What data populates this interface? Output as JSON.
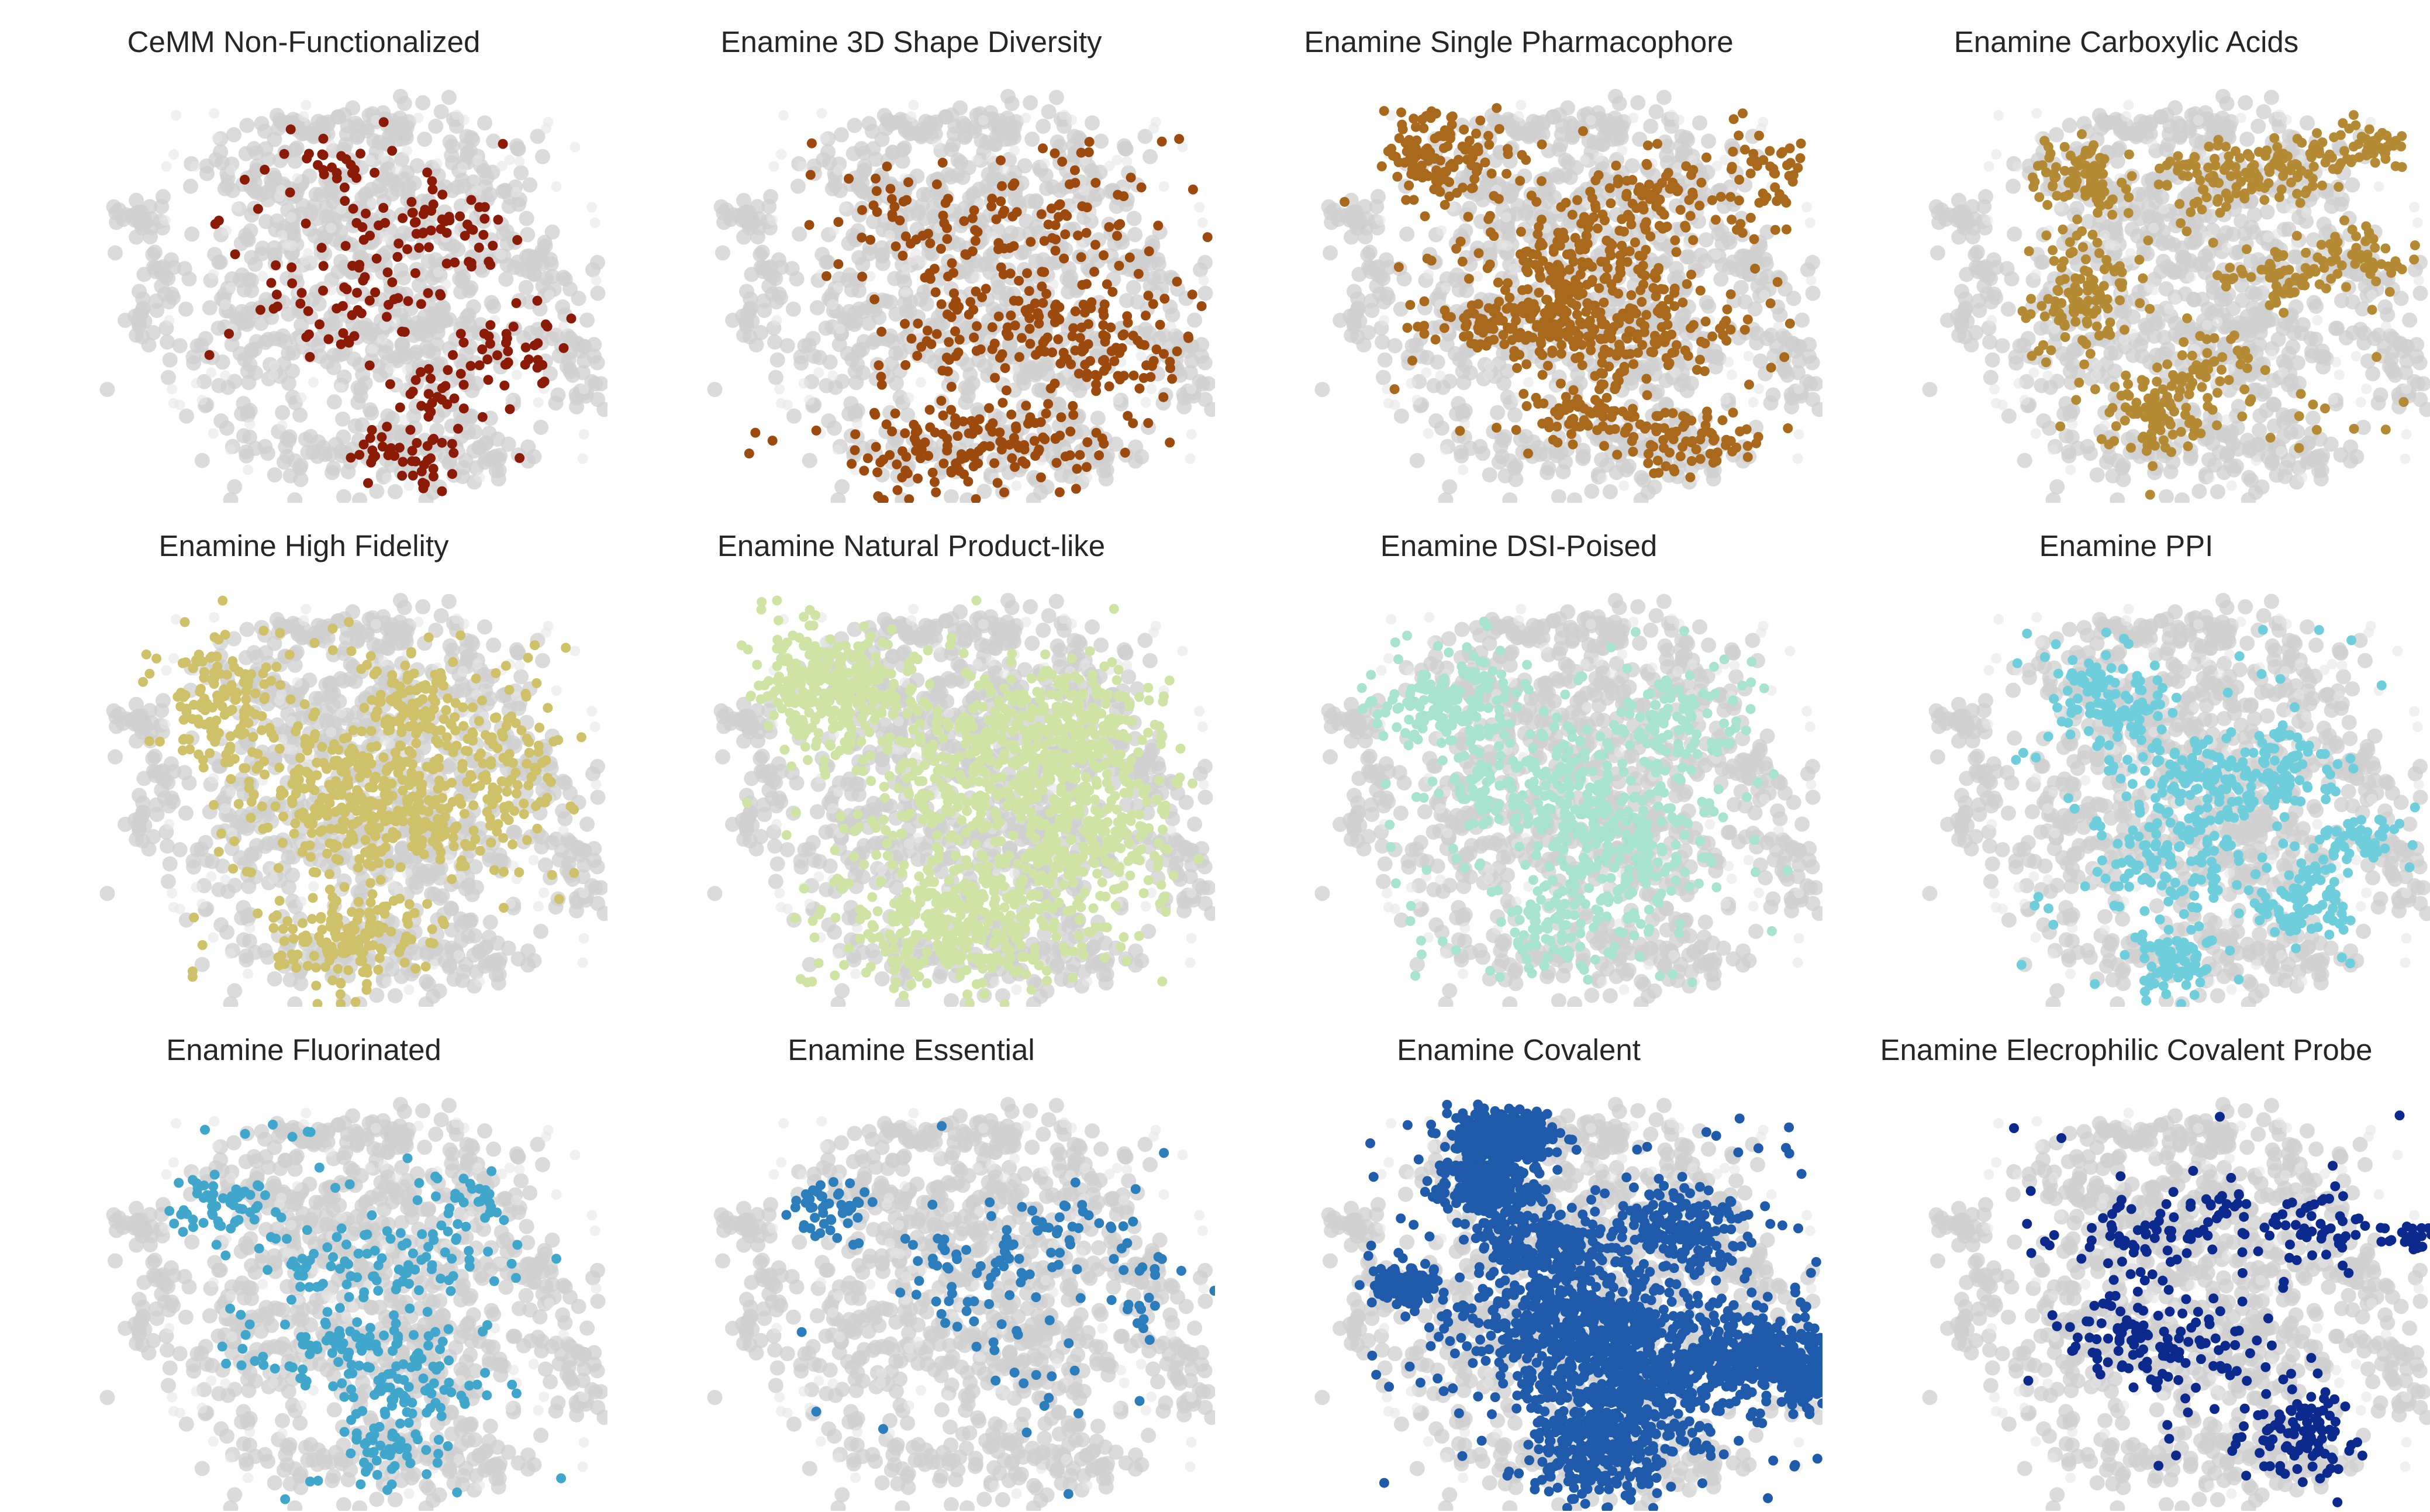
{
  "chart_data": [
    {
      "type": "scatter",
      "title": "CeMM Non-Functionalized",
      "color": "#8B1A07",
      "highlight": {
        "density": 0.55,
        "clusters": [
          [
            0.46,
            0.18,
            0.07,
            0.06,
            0.9
          ],
          [
            0.62,
            0.3,
            0.07,
            0.05,
            1.0
          ],
          [
            0.47,
            0.52,
            0.1,
            0.07,
            1.5
          ],
          [
            0.82,
            0.65,
            0.07,
            0.05,
            1.1
          ],
          [
            0.66,
            0.75,
            0.05,
            0.05,
            0.8
          ],
          [
            0.6,
            0.9,
            0.07,
            0.04,
            1.2
          ],
          [
            0.7,
            0.38,
            0.08,
            0.07,
            0.7
          ]
        ],
        "spread": [
          0.2,
          0.1,
          0.86,
          0.92
        ]
      }
    },
    {
      "type": "scatter",
      "title": "Enamine 3D Shape Diversity",
      "color": "#9C4A0D",
      "highlight": {
        "density": 1.1,
        "clusters": [
          [
            0.6,
            0.55,
            0.14,
            0.08,
            1.6
          ],
          [
            0.5,
            0.87,
            0.15,
            0.06,
            2.2
          ],
          [
            0.4,
            0.3,
            0.1,
            0.08,
            0.8
          ],
          [
            0.7,
            0.3,
            0.1,
            0.08,
            0.8
          ],
          [
            0.78,
            0.62,
            0.08,
            0.06,
            1.0
          ]
        ],
        "spread": [
          0.18,
          0.1,
          0.98,
          0.98
        ]
      }
    },
    {
      "type": "scatter",
      "title": "Enamine Single Pharmacophore",
      "color": "#A9691C",
      "highlight": {
        "density": 1.4,
        "clusters": [
          [
            0.22,
            0.15,
            0.07,
            0.06,
            1.5
          ],
          [
            0.52,
            0.4,
            0.1,
            0.06,
            1.6
          ],
          [
            0.42,
            0.55,
            0.1,
            0.05,
            1.8
          ],
          [
            0.62,
            0.6,
            0.12,
            0.06,
            1.6
          ],
          [
            0.52,
            0.78,
            0.06,
            0.05,
            0.8
          ],
          [
            0.7,
            0.85,
            0.08,
            0.05,
            0.9
          ],
          [
            0.65,
            0.25,
            0.07,
            0.05,
            0.9
          ],
          [
            0.88,
            0.2,
            0.05,
            0.08,
            0.6
          ]
        ],
        "spread": [
          0.12,
          0.08,
          0.96,
          0.95
        ]
      }
    },
    {
      "type": "scatter",
      "title": "Enamine Carboxylic Acids",
      "color": "#B48A35",
      "highlight": {
        "density": 1.0,
        "clusters": [
          [
            0.3,
            0.2,
            0.05,
            0.05,
            1.4
          ],
          [
            0.3,
            0.48,
            0.05,
            0.07,
            1.8
          ],
          [
            0.45,
            0.78,
            0.05,
            0.06,
            1.6
          ],
          [
            0.56,
            0.2,
            0.06,
            0.05,
            1.2
          ],
          [
            0.72,
            0.18,
            0.06,
            0.04,
            1.0
          ],
          [
            0.88,
            0.12,
            0.04,
            0.03,
            0.8
          ],
          [
            0.7,
            0.45,
            0.05,
            0.04,
            0.9
          ],
          [
            0.86,
            0.4,
            0.05,
            0.04,
            0.8
          ],
          [
            0.58,
            0.68,
            0.05,
            0.05,
            0.7
          ]
        ],
        "spread": [
          0.2,
          0.06,
          0.98,
          0.88
        ]
      }
    },
    {
      "type": "scatter",
      "title": "Enamine High Fidelity",
      "color": "#CFC06A",
      "highlight": {
        "density": 1.7,
        "clusters": [
          [
            0.22,
            0.25,
            0.07,
            0.08,
            1.3
          ],
          [
            0.5,
            0.45,
            0.12,
            0.07,
            2.0
          ],
          [
            0.6,
            0.55,
            0.12,
            0.06,
            1.8
          ],
          [
            0.48,
            0.85,
            0.08,
            0.06,
            1.4
          ],
          [
            0.62,
            0.25,
            0.07,
            0.06,
            1.0
          ],
          [
            0.8,
            0.4,
            0.06,
            0.08,
            0.7
          ]
        ],
        "spread": [
          0.15,
          0.05,
          0.95,
          0.98
        ]
      }
    },
    {
      "type": "scatter",
      "title": "Enamine Natural Product-like",
      "color": "#CFE3A5",
      "highlight": {
        "density": 2.6,
        "clusters": [
          [
            0.22,
            0.22,
            0.08,
            0.08,
            1.8
          ],
          [
            0.55,
            0.45,
            0.15,
            0.12,
            2.5
          ],
          [
            0.48,
            0.8,
            0.12,
            0.08,
            2.0
          ],
          [
            0.7,
            0.3,
            0.08,
            0.08,
            1.2
          ],
          [
            0.75,
            0.6,
            0.08,
            0.08,
            1.0
          ]
        ],
        "spread": [
          0.12,
          0.05,
          0.95,
          0.98
        ]
      }
    },
    {
      "type": "scatter",
      "title": "Enamine DSI-Poised",
      "color": "#A7E3CE",
      "highlight": {
        "density": 1.7,
        "clusters": [
          [
            0.22,
            0.25,
            0.07,
            0.06,
            1.3
          ],
          [
            0.45,
            0.45,
            0.12,
            0.1,
            2.0
          ],
          [
            0.6,
            0.6,
            0.1,
            0.08,
            1.6
          ],
          [
            0.48,
            0.8,
            0.08,
            0.06,
            1.0
          ],
          [
            0.7,
            0.3,
            0.06,
            0.06,
            0.9
          ]
        ],
        "spread": [
          0.12,
          0.05,
          0.95,
          0.98
        ]
      }
    },
    {
      "type": "scatter",
      "title": "Enamine PPI",
      "color": "#6FCEDB",
      "highlight": {
        "density": 1.2,
        "clusters": [
          [
            0.36,
            0.25,
            0.06,
            0.05,
            1.5
          ],
          [
            0.55,
            0.45,
            0.1,
            0.06,
            1.8
          ],
          [
            0.48,
            0.65,
            0.08,
            0.07,
            1.6
          ],
          [
            0.75,
            0.75,
            0.05,
            0.05,
            1.2
          ],
          [
            0.48,
            0.9,
            0.04,
            0.04,
            1.0
          ],
          [
            0.72,
            0.42,
            0.06,
            0.05,
            1.0
          ],
          [
            0.86,
            0.6,
            0.04,
            0.03,
            0.7
          ]
        ],
        "spread": [
          0.15,
          0.05,
          0.98,
          0.98
        ]
      }
    },
    {
      "type": "scatter",
      "title": "Enamine Fluorinated",
      "color": "#41A6CC",
      "highlight": {
        "density": 0.9,
        "clusters": [
          [
            0.22,
            0.25,
            0.07,
            0.04,
            1.0
          ],
          [
            0.52,
            0.4,
            0.12,
            0.05,
            1.5
          ],
          [
            0.48,
            0.6,
            0.12,
            0.05,
            1.6
          ],
          [
            0.62,
            0.7,
            0.08,
            0.05,
            1.0
          ],
          [
            0.55,
            0.85,
            0.05,
            0.05,
            1.0
          ],
          [
            0.7,
            0.25,
            0.06,
            0.06,
            0.7
          ]
        ],
        "spread": [
          0.18,
          0.05,
          0.92,
          0.98
        ]
      }
    },
    {
      "type": "scatter",
      "title": "Enamine Essential",
      "color": "#2C7DBC",
      "highlight": {
        "density": 0.5,
        "clusters": [
          [
            0.22,
            0.25,
            0.05,
            0.04,
            1.5
          ],
          [
            0.48,
            0.4,
            0.1,
            0.06,
            1.2
          ],
          [
            0.7,
            0.3,
            0.08,
            0.06,
            1.0
          ],
          [
            0.58,
            0.55,
            0.1,
            0.08,
            1.0
          ],
          [
            0.85,
            0.45,
            0.05,
            0.06,
            0.7
          ]
        ],
        "spread": [
          0.15,
          0.05,
          0.92,
          0.98
        ]
      }
    },
    {
      "type": "scatter",
      "title": "Enamine Covalent",
      "color": "#1F5BAA",
      "highlight": {
        "density": 3.2,
        "clusters": [
          [
            0.35,
            0.08,
            0.05,
            0.03,
            1.8
          ],
          [
            0.32,
            0.2,
            0.05,
            0.04,
            1.2
          ],
          [
            0.45,
            0.35,
            0.08,
            0.05,
            1.2
          ],
          [
            0.5,
            0.55,
            0.12,
            0.07,
            2.5
          ],
          [
            0.62,
            0.68,
            0.12,
            0.07,
            2.2
          ],
          [
            0.55,
            0.85,
            0.08,
            0.06,
            1.6
          ],
          [
            0.88,
            0.62,
            0.06,
            0.05,
            1.4
          ],
          [
            0.98,
            0.68,
            0.03,
            0.03,
            0.8
          ],
          [
            0.15,
            0.45,
            0.03,
            0.02,
            0.8
          ],
          [
            0.72,
            0.32,
            0.06,
            0.05,
            0.9
          ]
        ],
        "spread": [
          0.08,
          0.03,
          1.0,
          0.99
        ]
      }
    },
    {
      "type": "scatter",
      "title": "Enamine Elecrophilic Covalent Probe",
      "color": "#0C2A8E",
      "highlight": {
        "density": 0.8,
        "clusters": [
          [
            0.42,
            0.32,
            0.06,
            0.04,
            0.9
          ],
          [
            0.6,
            0.28,
            0.08,
            0.05,
            0.9
          ],
          [
            0.38,
            0.58,
            0.07,
            0.06,
            1.4
          ],
          [
            0.55,
            0.62,
            0.08,
            0.07,
            1.2
          ],
          [
            0.75,
            0.82,
            0.06,
            0.06,
            2.0
          ],
          [
            0.8,
            0.3,
            0.05,
            0.05,
            0.9
          ],
          [
            0.98,
            0.33,
            0.03,
            0.02,
            0.5
          ]
        ],
        "spread": [
          0.15,
          0.02,
          1.0,
          0.98
        ]
      }
    }
  ]
}
